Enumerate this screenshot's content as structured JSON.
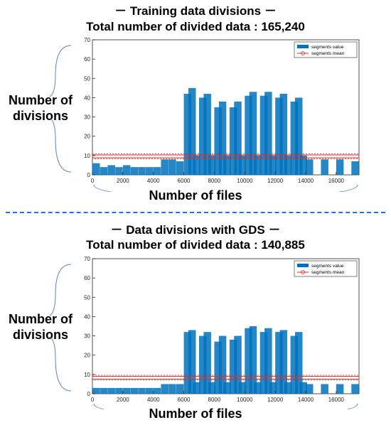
{
  "chart_data": [
    {
      "type": "bar",
      "title": "－ Training data divisions －",
      "subtitle": "Total number of divided data : 165,240",
      "ylabel": "Number of divisions",
      "xlabel": "Number of files",
      "xlim": [
        0,
        17500
      ],
      "ylim": [
        0,
        70
      ],
      "xticks": [
        "0",
        "2000",
        "4000",
        "6000",
        "8000",
        "10000",
        "12000",
        "14000",
        "16000"
      ],
      "yticks": [
        "0",
        "10",
        "20",
        "30",
        "40",
        "50",
        "60",
        "70"
      ],
      "legend": {
        "placement": "top-right",
        "entries": [
          "segments value",
          "segments mean"
        ]
      },
      "series": [
        {
          "name": "segments value",
          "color": "#0072bd",
          "x": [
            0,
            500,
            1000,
            1500,
            2000,
            2500,
            3000,
            3500,
            4000,
            4500,
            5000,
            5500,
            6000,
            6300,
            6600,
            7000,
            7300,
            7600,
            8000,
            8300,
            8600,
            9000,
            9300,
            9600,
            10000,
            10300,
            10600,
            11000,
            11300,
            11600,
            12000,
            12300,
            12600,
            13000,
            13300,
            13600,
            14000,
            15000,
            16000,
            17000
          ],
          "values": [
            6,
            4,
            5,
            4,
            5,
            4,
            4,
            4,
            4,
            8,
            8,
            7,
            42,
            45,
            10,
            40,
            42,
            10,
            35,
            38,
            10,
            35,
            38,
            10,
            41,
            43,
            10,
            41,
            43,
            10,
            40,
            42,
            10,
            38,
            40,
            10,
            8,
            8,
            8,
            7
          ]
        },
        {
          "name": "segments mean",
          "color": "#d9302c",
          "values": [
            9.6
          ]
        }
      ]
    },
    {
      "type": "bar",
      "title": "－ Data divisions with GDS －",
      "subtitle": "Total number of divided data : 140,885",
      "ylabel": "Number of divisions",
      "xlabel": "Number of files",
      "xlim": [
        0,
        17500
      ],
      "ylim": [
        0,
        70
      ],
      "xticks": [
        "0",
        "2000",
        "4000",
        "6000",
        "8000",
        "10000",
        "12000",
        "14000",
        "16000"
      ],
      "yticks": [
        "0",
        "10",
        "20",
        "30",
        "40",
        "50",
        "60",
        "70"
      ],
      "legend": {
        "placement": "top-right",
        "entries": [
          "segments value",
          "segments mean"
        ]
      },
      "series": [
        {
          "name": "segments value",
          "color": "#0072bd",
          "x": [
            0,
            500,
            1000,
            1500,
            2000,
            2500,
            3000,
            3500,
            4000,
            4500,
            5000,
            5500,
            6000,
            6300,
            6600,
            7000,
            7300,
            7600,
            8000,
            8300,
            8600,
            9000,
            9300,
            9600,
            10000,
            10300,
            10600,
            11000,
            11300,
            11600,
            12000,
            12300,
            12600,
            13000,
            13300,
            13600,
            14000,
            15000,
            16000,
            17000
          ],
          "values": [
            3,
            3,
            3,
            3,
            3,
            3,
            3,
            3,
            3,
            5,
            5,
            5,
            32,
            33,
            6,
            30,
            32,
            6,
            27,
            30,
            6,
            28,
            30,
            6,
            34,
            35,
            6,
            32,
            34,
            6,
            32,
            33,
            6,
            30,
            32,
            6,
            5,
            5,
            5,
            5
          ]
        },
        {
          "name": "segments mean",
          "color": "#d9302c",
          "values": [
            8.3
          ]
        }
      ]
    }
  ]
}
